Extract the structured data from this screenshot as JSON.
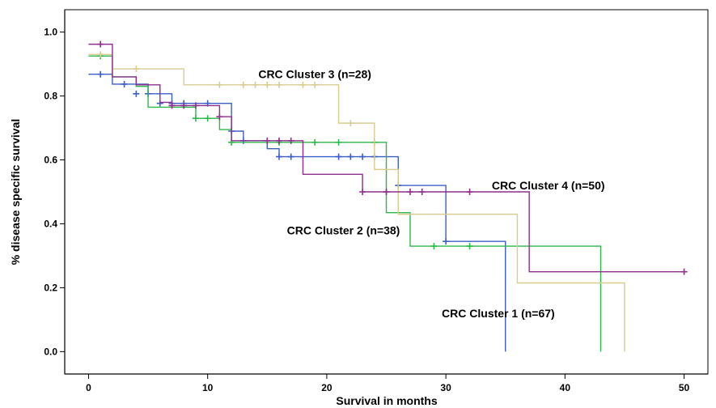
{
  "chart_data": {
    "type": "line",
    "subtype": "kaplan-meier",
    "xlabel": "Survival in months",
    "ylabel": "% disease specific survival",
    "xlim": [
      -2,
      52
    ],
    "ylim": [
      -0.07,
      1.07
    ],
    "x_ticks": [
      "0",
      "10",
      "20",
      "30",
      "40",
      "50"
    ],
    "y_ticks": [
      "0.0",
      "0.2",
      "0.4",
      "0.6",
      "0.8",
      "1.0"
    ],
    "grid": false,
    "series": [
      {
        "name": "CRC Cluster 1 (n=67)",
        "color": "#3d5ec9",
        "steps": [
          [
            0,
            0.868
          ],
          [
            2,
            0.837
          ],
          [
            5,
            0.807
          ],
          [
            7,
            0.777
          ],
          [
            12,
            0.69
          ],
          [
            13,
            0.66
          ],
          [
            15,
            0.635
          ],
          [
            16,
            0.61
          ],
          [
            26,
            0.52
          ],
          [
            30,
            0.345
          ],
          [
            35,
            0.0
          ]
        ],
        "end_x": 35,
        "censored": [
          [
            1,
            0.868
          ],
          [
            3,
            0.837
          ],
          [
            4,
            0.807
          ],
          [
            5,
            0.807
          ],
          [
            6,
            0.777
          ],
          [
            7,
            0.777
          ],
          [
            8,
            0.777
          ],
          [
            10,
            0.777
          ],
          [
            12,
            0.69
          ],
          [
            13,
            0.66
          ],
          [
            16,
            0.61
          ],
          [
            17,
            0.61
          ],
          [
            21,
            0.61
          ],
          [
            22,
            0.61
          ],
          [
            23,
            0.61
          ],
          [
            24,
            0.61
          ],
          [
            26,
            0.52
          ],
          [
            30,
            0.345
          ]
        ]
      },
      {
        "name": "CRC Cluster 2 (n=38)",
        "color": "#2db84a",
        "steps": [
          [
            0,
            0.925
          ],
          [
            2,
            0.86
          ],
          [
            4,
            0.83
          ],
          [
            5,
            0.765
          ],
          [
            9,
            0.73
          ],
          [
            11,
            0.695
          ],
          [
            12,
            0.655
          ],
          [
            25,
            0.435
          ],
          [
            27,
            0.33
          ],
          [
            43,
            0.0
          ]
        ],
        "end_x": 43,
        "censored": [
          [
            1,
            0.925
          ],
          [
            9,
            0.73
          ],
          [
            10,
            0.73
          ],
          [
            12,
            0.655
          ],
          [
            16,
            0.655
          ],
          [
            19,
            0.655
          ],
          [
            21,
            0.655
          ],
          [
            24,
            0.655
          ],
          [
            29,
            0.33
          ],
          [
            32,
            0.33
          ]
        ]
      },
      {
        "name": "CRC Cluster 3 (n=28)",
        "color": "#d8cd90",
        "steps": [
          [
            0,
            0.93
          ],
          [
            2,
            0.885
          ],
          [
            8,
            0.835
          ],
          [
            21,
            0.715
          ],
          [
            24,
            0.57
          ],
          [
            26,
            0.43
          ],
          [
            36,
            0.215
          ],
          [
            45,
            0.0
          ]
        ],
        "end_x": 45,
        "censored": [
          [
            1,
            0.93
          ],
          [
            4,
            0.885
          ],
          [
            11,
            0.835
          ],
          [
            13,
            0.835
          ],
          [
            14,
            0.835
          ],
          [
            15,
            0.835
          ],
          [
            16,
            0.835
          ],
          [
            18,
            0.835
          ],
          [
            19,
            0.835
          ],
          [
            22,
            0.715
          ]
        ]
      },
      {
        "name": "CRC Cluster 4 (n=50)",
        "color": "#8e2f8c",
        "steps": [
          [
            0,
            0.962
          ],
          [
            2,
            0.86
          ],
          [
            4,
            0.835
          ],
          [
            6,
            0.78
          ],
          [
            7,
            0.77
          ],
          [
            11,
            0.735
          ],
          [
            12,
            0.66
          ],
          [
            18,
            0.555
          ],
          [
            23,
            0.5
          ],
          [
            37,
            0.25
          ]
        ],
        "end_x": 50,
        "censored": [
          [
            1,
            0.962
          ],
          [
            7,
            0.77
          ],
          [
            8,
            0.77
          ],
          [
            9,
            0.77
          ],
          [
            11,
            0.735
          ],
          [
            15,
            0.66
          ],
          [
            16,
            0.66
          ],
          [
            17,
            0.66
          ],
          [
            23,
            0.5
          ],
          [
            25,
            0.5
          ],
          [
            27,
            0.5
          ],
          [
            28,
            0.5
          ],
          [
            32,
            0.5
          ],
          [
            50,
            0.25
          ]
        ]
      }
    ],
    "annotations": [
      {
        "text": "CRC Cluster 3 (n=28)",
        "x": 19,
        "y": 0.868
      },
      {
        "text": "CRC Cluster 4 (n=50)",
        "x": 38.6,
        "y": 0.52
      },
      {
        "text": "CRC Cluster 2 (n=38)",
        "x": 21.4,
        "y": 0.38
      },
      {
        "text": "CRC Cluster 1 (n=67)",
        "x": 34.4,
        "y": 0.12
      }
    ]
  }
}
